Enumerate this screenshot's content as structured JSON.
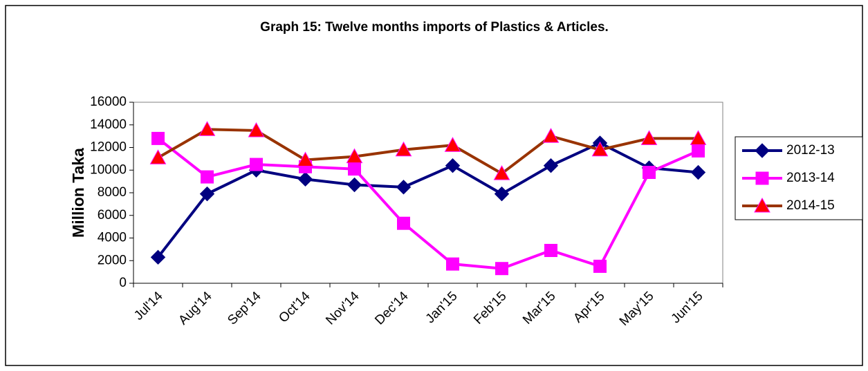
{
  "chart_data": {
    "type": "line",
    "title": "Graph 15: Twelve months imports of Plastics & Articles.",
    "y_label": "Million Taka",
    "categories": [
      "Jul'14",
      "Aug'14",
      "Sep'14",
      "Oct'14",
      "Nov'14",
      "Dec'14",
      "Jan'15",
      "Feb'15",
      "Mar'15",
      "Apr'15",
      "May'15",
      "Jun'15"
    ],
    "series": [
      {
        "name": "2012-13",
        "color": "#000080",
        "marker": "diamond",
        "marker_color": "#000080",
        "values": [
          2300,
          7900,
          10000,
          9200,
          8700,
          8500,
          10400,
          7900,
          10400,
          12400,
          10200,
          9800
        ]
      },
      {
        "name": "2013-14",
        "color": "#ff00ff",
        "marker": "square",
        "marker_color": "#ff00ff",
        "values": [
          12800,
          9400,
          10500,
          10300,
          10100,
          5300,
          1700,
          1300,
          2900,
          1500,
          9800,
          11700
        ]
      },
      {
        "name": "2014-15",
        "color": "#993300",
        "marker": "triangle",
        "marker_color": "#ff0000",
        "values": [
          11100,
          13600,
          13500,
          10900,
          11200,
          11800,
          12200,
          9700,
          13000,
          11800,
          12800,
          12800
        ]
      }
    ],
    "ylim": [
      0,
      16000
    ],
    "yticks": [
      0,
      2000,
      4000,
      6000,
      8000,
      10000,
      12000,
      14000,
      16000
    ],
    "grid": false,
    "legend": "right"
  }
}
